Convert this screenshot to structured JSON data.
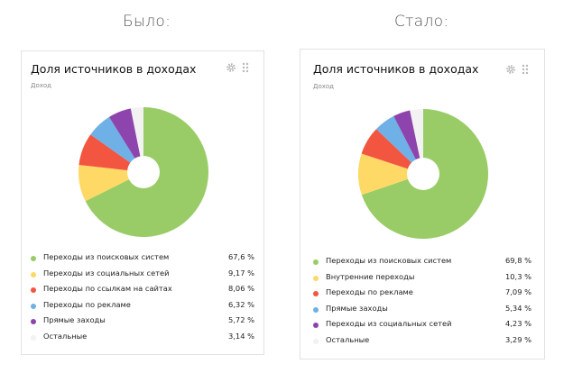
{
  "headings": {
    "before": "Было:",
    "after": "Стало:"
  },
  "icons": {
    "settings": "gear-icon",
    "drag": "drag-handle-icon"
  },
  "colors": {
    "search": "#99cc66",
    "yellow": "#ffd966",
    "red": "#f25540",
    "blue": "#6fb0e6",
    "purple": "#8e44ad",
    "other": "#f2f2f2"
  },
  "chart_data": [
    {
      "type": "pie",
      "panel": "before",
      "title": "Доля источников в доходах",
      "subtitle": "Доход",
      "labels": [
        "Переходы из поисковых систем",
        "Переходы из социальных сетей",
        "Переходы по ссылкам на сайтах",
        "Переходы по рекламе",
        "Прямые заходы",
        "Остальные"
      ],
      "values": [
        67.6,
        9.17,
        8.06,
        6.32,
        5.72,
        3.14
      ],
      "display_values": [
        "67,6 %",
        "9,17 %",
        "8,06 %",
        "6,32 %",
        "5,72 %",
        "3,14 %"
      ],
      "colors": [
        "#99cc66",
        "#ffd966",
        "#f25540",
        "#6fb0e6",
        "#8e44ad",
        "#f2f2f2"
      ]
    },
    {
      "type": "pie",
      "panel": "after",
      "title": "Доля источников в доходах",
      "subtitle": "Доход",
      "labels": [
        "Переходы из поисковых систем",
        "Внутренние переходы",
        "Переходы по рекламе",
        "Прямые заходы",
        "Переходы из социальных сетей",
        "Остальные"
      ],
      "values": [
        69.8,
        10.3,
        7.09,
        5.34,
        4.23,
        3.29
      ],
      "display_values": [
        "69,8 %",
        "10,3 %",
        "7,09 %",
        "5,34 %",
        "4,23 %",
        "3,29 %"
      ],
      "colors": [
        "#99cc66",
        "#ffd966",
        "#f25540",
        "#6fb0e6",
        "#8e44ad",
        "#f2f2f2"
      ]
    }
  ]
}
